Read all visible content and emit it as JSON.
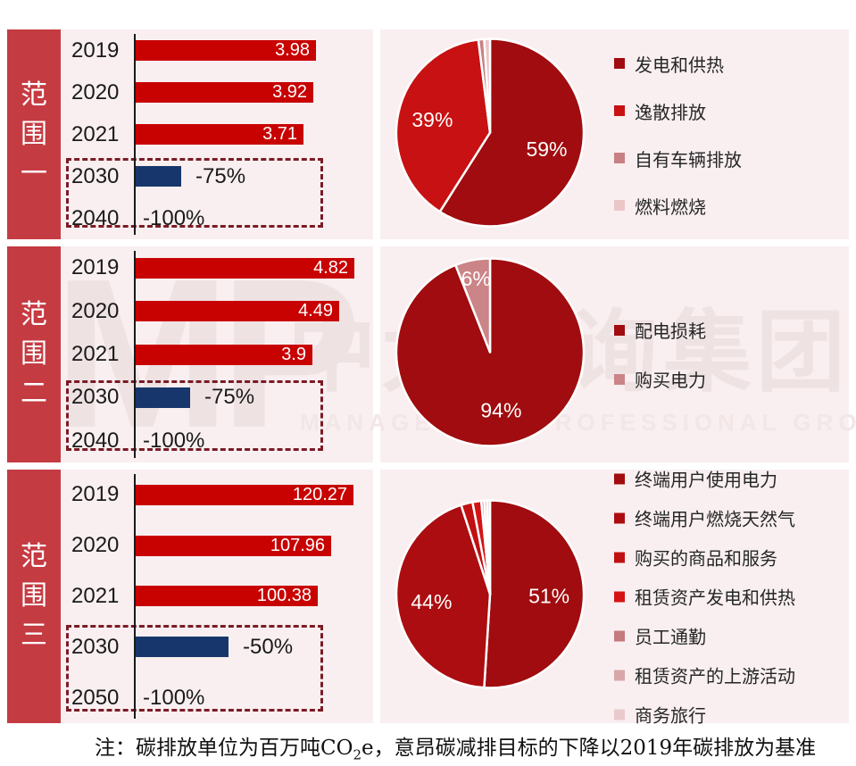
{
  "note": {
    "prefix": "注：碳排放单位为百万吨CO",
    "sub": "2",
    "suffix": "e，意昂碳减排目标的下降以2019年碳排放为基准"
  },
  "watermark": {
    "logo": "MP",
    "name": "中大咨询集团",
    "subtitle": "MANAGEMENT PROFESSIONAL GROUP"
  },
  "colors": {
    "panel_bg": "#F9EFF0",
    "scope_strip": "#C53B42",
    "bar_red": "#C80101",
    "target_blue": "#17376C",
    "dashed_box": "#7A1C26",
    "pie_dark_red": "#A00C0F",
    "pie_bright_red": "#C81112"
  },
  "chart_data": {
    "sections": [
      {
        "scope_label": "范围一",
        "bars": {
          "type": "bar",
          "xmax": 5.2,
          "unit": "百万吨CO2e",
          "rows": [
            {
              "year": "2019",
              "value": 3.98,
              "label": "3.98",
              "type": "actual"
            },
            {
              "year": "2020",
              "value": 3.92,
              "label": "3.92",
              "type": "actual"
            },
            {
              "year": "2021",
              "value": 3.71,
              "label": "3.71",
              "type": "actual"
            },
            {
              "year": "2030",
              "value": 1.0,
              "label": "-75%",
              "type": "target"
            },
            {
              "year": "2040",
              "value": 0,
              "label": "-100%",
              "type": "target-zero"
            }
          ]
        },
        "pie": {
          "type": "pie",
          "slices": [
            {
              "label": "发电和供热",
              "pct": 59,
              "color": "#A00C0F"
            },
            {
              "label": "逸散排放",
              "pct": 39,
              "color": "#C81112"
            },
            {
              "label": "自有车辆排放",
              "pct": 1,
              "color": "#C98083"
            },
            {
              "label": "燃料燃烧",
              "pct": 1,
              "color": "#EAC6C9"
            }
          ]
        }
      },
      {
        "scope_label": "范围二",
        "bars": {
          "type": "bar",
          "xmax": 5.2,
          "unit": "百万吨CO2e",
          "rows": [
            {
              "year": "2019",
              "value": 4.82,
              "label": "4.82",
              "type": "actual"
            },
            {
              "year": "2020",
              "value": 4.49,
              "label": "4.49",
              "type": "actual"
            },
            {
              "year": "2021",
              "value": 3.9,
              "label": "3.9",
              "type": "actual"
            },
            {
              "year": "2030",
              "value": 1.2,
              "label": "-75%",
              "type": "target"
            },
            {
              "year": "2040",
              "value": 0,
              "label": "-100%",
              "type": "target-zero"
            }
          ]
        },
        "pie": {
          "type": "pie",
          "slices": [
            {
              "label": "配电损耗",
              "pct": 94,
              "color": "#A00C0F"
            },
            {
              "label": "购买电力",
              "pct": 6,
              "color": "#CB8487"
            }
          ]
        }
      },
      {
        "scope_label": "范围三",
        "bars": {
          "type": "bar",
          "xmax": 130,
          "unit": "百万吨CO2e",
          "rows": [
            {
              "year": "2019",
              "value": 120.27,
              "label": "120.27",
              "type": "actual"
            },
            {
              "year": "2020",
              "value": 107.96,
              "label": "107.96",
              "type": "actual"
            },
            {
              "year": "2021",
              "value": 100.38,
              "label": "100.38",
              "type": "actual"
            },
            {
              "year": "2030",
              "value": 51,
              "label": "-50%",
              "type": "target"
            },
            {
              "year": "2050",
              "value": 0,
              "label": "-100%",
              "type": "target-zero"
            }
          ]
        },
        "pie": {
          "type": "pie",
          "slices": [
            {
              "label": "终端用户使用电力",
              "pct": 51,
              "color": "#A00C0F"
            },
            {
              "label": "终端用户燃烧天然气",
              "pct": 44,
              "color": "#AC0D10"
            },
            {
              "label": "购买的商品和服务",
              "pct": 2,
              "color": "#C11011"
            },
            {
              "label": "租赁资产发电和供热",
              "pct": 1.5,
              "color": "#D51314"
            },
            {
              "label": "员工通勤",
              "pct": 0.5,
              "color": "#C5797D"
            },
            {
              "label": "租赁资产的上游活动",
              "pct": 0.5,
              "color": "#D8A6A9"
            },
            {
              "label": "商务旅行",
              "pct": 0.5,
              "color": "#EAC9CC"
            }
          ]
        }
      }
    ]
  }
}
